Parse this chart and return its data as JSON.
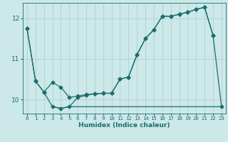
{
  "title": "",
  "xlabel": "Humidex (Indice chaleur)",
  "bg_color": "#cce8e8",
  "line_color": "#1a6e6e",
  "grid_color": "#aacccc",
  "xlim": [
    -0.5,
    23.5
  ],
  "ylim": [
    9.65,
    12.38
  ],
  "yticks": [
    10,
    11,
    12
  ],
  "xticks": [
    0,
    1,
    2,
    3,
    4,
    5,
    6,
    7,
    8,
    9,
    10,
    11,
    12,
    13,
    14,
    15,
    16,
    17,
    18,
    19,
    20,
    21,
    22,
    23
  ],
  "line1_x": [
    0,
    1,
    2,
    3,
    4,
    5,
    6,
    7,
    8,
    9,
    10,
    11,
    12,
    13,
    14,
    15,
    16,
    17,
    18,
    19,
    20,
    21,
    22
  ],
  "line1_y": [
    11.75,
    10.45,
    10.18,
    10.42,
    10.3,
    10.05,
    10.08,
    10.12,
    10.14,
    10.15,
    10.15,
    10.5,
    10.55,
    11.1,
    11.5,
    11.72,
    12.05,
    12.05,
    12.1,
    12.15,
    12.22,
    12.27,
    11.58
  ],
  "line2_x": [
    0,
    1,
    2,
    3,
    4,
    5,
    6,
    7,
    8,
    9,
    10,
    11,
    12,
    13,
    14,
    15,
    16,
    17,
    18,
    19,
    20,
    21,
    22,
    23
  ],
  "line2_y": [
    11.75,
    10.45,
    10.18,
    9.82,
    9.78,
    9.82,
    10.05,
    10.1,
    10.14,
    10.15,
    10.15,
    10.5,
    10.55,
    11.1,
    11.5,
    11.72,
    12.05,
    12.05,
    12.1,
    12.15,
    12.22,
    12.27,
    11.58,
    9.82
  ],
  "line3_x": [
    3,
    4,
    5,
    6,
    7,
    8,
    9,
    10,
    11,
    12,
    13,
    14,
    15,
    16,
    17,
    18,
    19,
    20,
    21,
    23
  ],
  "line3_y": [
    9.82,
    9.78,
    9.82,
    9.82,
    9.82,
    9.82,
    9.82,
    9.82,
    9.82,
    9.82,
    9.82,
    9.82,
    9.82,
    9.82,
    9.82,
    9.82,
    9.82,
    9.82,
    9.82,
    9.82
  ],
  "markersize": 2.5,
  "linewidth": 0.9
}
